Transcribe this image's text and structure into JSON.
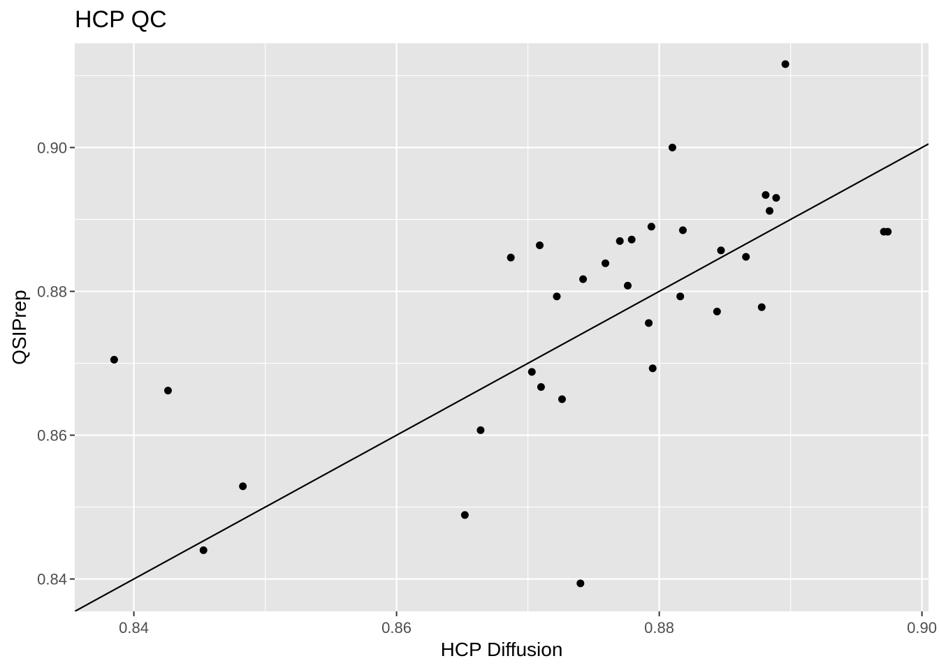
{
  "chart_data": {
    "type": "scatter",
    "title": "HCP QC",
    "xlabel": "HCP Diffusion",
    "ylabel": "QSIPrep",
    "xlim": [
      0.8355,
      0.9005
    ],
    "ylim": [
      0.8355,
      0.9145
    ],
    "x_ticks": [
      {
        "value": 0.84,
        "label": "0.84"
      },
      {
        "value": 0.86,
        "label": "0.86"
      },
      {
        "value": 0.88,
        "label": "0.88"
      },
      {
        "value": 0.9,
        "label": "0.90"
      }
    ],
    "y_ticks": [
      {
        "value": 0.84,
        "label": "0.84"
      },
      {
        "value": 0.86,
        "label": "0.86"
      },
      {
        "value": 0.88,
        "label": "0.88"
      },
      {
        "value": 0.9,
        "label": "0.90"
      }
    ],
    "grid": true,
    "panel_background": "#e5e5e5",
    "grid_color": "#ffffff",
    "point_color": "#000000",
    "reference_line": {
      "slope": 1,
      "intercept": 0,
      "color": "#000000"
    },
    "points": [
      {
        "x": 0.8385,
        "y": 0.8705
      },
      {
        "x": 0.8426,
        "y": 0.8662
      },
      {
        "x": 0.8453,
        "y": 0.844
      },
      {
        "x": 0.8483,
        "y": 0.8529
      },
      {
        "x": 0.8652,
        "y": 0.8489
      },
      {
        "x": 0.8664,
        "y": 0.8607
      },
      {
        "x": 0.8687,
        "y": 0.8847
      },
      {
        "x": 0.8703,
        "y": 0.8688
      },
      {
        "x": 0.8709,
        "y": 0.8864
      },
      {
        "x": 0.871,
        "y": 0.8667
      },
      {
        "x": 0.8722,
        "y": 0.8793
      },
      {
        "x": 0.8726,
        "y": 0.865
      },
      {
        "x": 0.874,
        "y": 0.8394
      },
      {
        "x": 0.8742,
        "y": 0.8817
      },
      {
        "x": 0.8759,
        "y": 0.8839
      },
      {
        "x": 0.877,
        "y": 0.887
      },
      {
        "x": 0.8776,
        "y": 0.8808
      },
      {
        "x": 0.8779,
        "y": 0.8872
      },
      {
        "x": 0.8792,
        "y": 0.8756
      },
      {
        "x": 0.8794,
        "y": 0.889
      },
      {
        "x": 0.8795,
        "y": 0.8693
      },
      {
        "x": 0.881,
        "y": 0.9
      },
      {
        "x": 0.8816,
        "y": 0.8793
      },
      {
        "x": 0.8818,
        "y": 0.8885
      },
      {
        "x": 0.8844,
        "y": 0.8772
      },
      {
        "x": 0.8847,
        "y": 0.8857
      },
      {
        "x": 0.8866,
        "y": 0.8848
      },
      {
        "x": 0.8878,
        "y": 0.8778
      },
      {
        "x": 0.8881,
        "y": 0.8934
      },
      {
        "x": 0.8884,
        "y": 0.8912
      },
      {
        "x": 0.8889,
        "y": 0.893
      },
      {
        "x": 0.8896,
        "y": 0.9116
      },
      {
        "x": 0.8971,
        "y": 0.8883
      },
      {
        "x": 0.8974,
        "y": 0.8883
      }
    ]
  }
}
